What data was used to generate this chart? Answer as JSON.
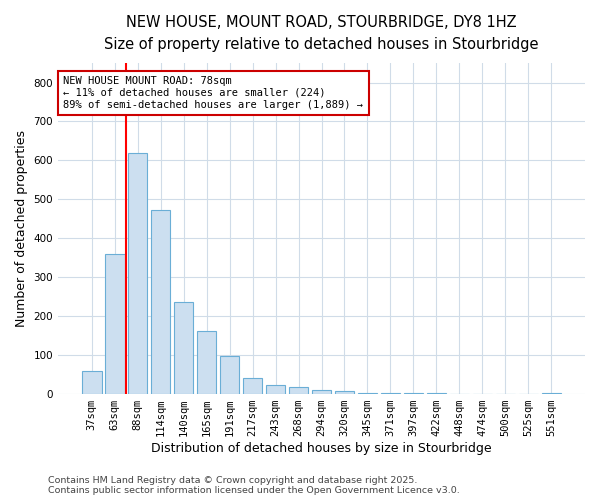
{
  "title": "NEW HOUSE, MOUNT ROAD, STOURBRIDGE, DY8 1HZ",
  "subtitle": "Size of property relative to detached houses in Stourbridge",
  "xlabel": "Distribution of detached houses by size in Stourbridge",
  "ylabel": "Number of detached properties",
  "bar_labels": [
    "37sqm",
    "63sqm",
    "88sqm",
    "114sqm",
    "140sqm",
    "165sqm",
    "191sqm",
    "217sqm",
    "243sqm",
    "268sqm",
    "294sqm",
    "320sqm",
    "345sqm",
    "371sqm",
    "397sqm",
    "422sqm",
    "448sqm",
    "474sqm",
    "500sqm",
    "525sqm",
    "551sqm"
  ],
  "bar_values": [
    60,
    360,
    618,
    473,
    237,
    163,
    97,
    42,
    23,
    18,
    10,
    7,
    2,
    2,
    2,
    2,
    1,
    1,
    1,
    1,
    4
  ],
  "bar_color": "#ccdff0",
  "bar_edge_color": "#6aaed6",
  "red_line_x": 1.5,
  "annotation_text": "NEW HOUSE MOUNT ROAD: 78sqm\n← 11% of detached houses are smaller (224)\n89% of semi-detached houses are larger (1,889) →",
  "annotation_box_color": "white",
  "annotation_box_edge_color": "#cc0000",
  "ylim": [
    0,
    850
  ],
  "yticks": [
    0,
    100,
    200,
    300,
    400,
    500,
    600,
    700,
    800
  ],
  "footer_line1": "Contains HM Land Registry data © Crown copyright and database right 2025.",
  "footer_line2": "Contains public sector information licensed under the Open Government Licence v3.0.",
  "background_color": "#ffffff",
  "plot_background_color": "#ffffff",
  "grid_color": "#d0dce8",
  "title_fontsize": 10.5,
  "subtitle_fontsize": 9.5,
  "axis_label_fontsize": 9,
  "tick_fontsize": 7.5,
  "footer_fontsize": 6.8
}
